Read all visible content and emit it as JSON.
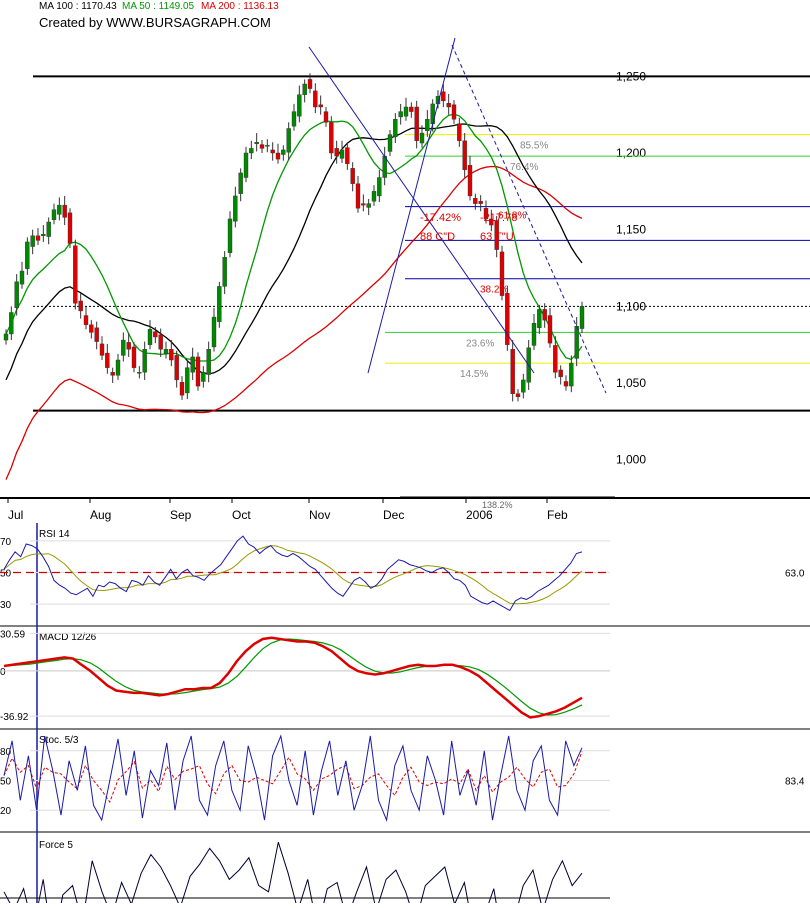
{
  "header": {
    "ma100": "MA 100 : 1170.43",
    "ma50": "MA 50 : 1149.05",
    "ma200": "MA 200 : 1136.13",
    "created_by": "Created by WWW.BURSAGRAPH.COM"
  },
  "colors": {
    "ma100": "#000000",
    "ma50": "#009900",
    "ma200": "#dd0000",
    "trend": "#1a1aaa",
    "fib_yellow": "#eeee00",
    "fib_green": "#33cc33",
    "fib_blue": "#0000aa",
    "candle_up": "#008800",
    "candle_down": "#dd0000",
    "rsi_line": "#1a1aaa",
    "rsi_signal": "#999900",
    "macd_main": "#dd0000",
    "macd_signal": "#009900",
    "stoch_k": "#1a1aaa",
    "stoch_d": "#dd0000",
    "force_line": "#000033"
  },
  "chart_data": [
    {
      "type": "candlestick",
      "name": "price",
      "x_labels": [
        "Jul",
        "Aug",
        "Sep",
        "Oct",
        "Nov",
        "Dec",
        "2006",
        "Feb"
      ],
      "y_ticks": [
        "1,250",
        "1,200",
        "1,150",
        "1,100",
        "1,050",
        "1,000"
      ],
      "ylim": [
        975,
        1275
      ],
      "horizontal_levels": [
        1250,
        1032
      ],
      "fib_levels": [
        {
          "label": "85.5%",
          "value": 1212
        },
        {
          "label": "76.4%",
          "value": 1198
        },
        {
          "label": "61.8%",
          "value": 1165
        },
        {
          "label": "",
          "value": 1143
        },
        {
          "label": "38.2%",
          "value": 1118
        },
        {
          "label": "23.6%",
          "value": 1083
        },
        {
          "label": "14.5%",
          "value": 1063
        },
        {
          "label": "138.2%",
          "value": 907
        }
      ],
      "annotations": [
        "-17.42%",
        "-217.78",
        "88 C\"D",
        "63 T\"U"
      ],
      "last_close": 1100,
      "closes": [
        1082,
        1096,
        1116,
        1123,
        1142,
        1146,
        1143,
        1147,
        1155,
        1163,
        1166,
        1158,
        1141,
        1102,
        1097,
        1088,
        1083,
        1077,
        1068,
        1060,
        1055,
        1065,
        1078,
        1072,
        1060,
        1057,
        1072,
        1085,
        1080,
        1072,
        1072,
        1065,
        1052,
        1042,
        1060,
        1067,
        1048,
        1057,
        1072,
        1093,
        1113,
        1132,
        1157,
        1172,
        1187,
        1200,
        1203,
        1207,
        1203,
        1205,
        1200,
        1196,
        1202,
        1216,
        1227,
        1238,
        1245,
        1242,
        1230,
        1230,
        1220,
        1200,
        1198,
        1202,
        1193,
        1180,
        1164,
        1166,
        1167,
        1175,
        1184,
        1198,
        1212,
        1222,
        1227,
        1230,
        1227,
        1208,
        1213,
        1222,
        1232,
        1237,
        1234,
        1230,
        1222,
        1208,
        1189,
        1172,
        1167,
        1167,
        1157,
        1153,
        1137,
        1107,
        1075,
        1043,
        1041,
        1052,
        1073,
        1089,
        1098,
        1091,
        1076,
        1057,
        1054,
        1048,
        1063,
        1087,
        1100
      ]
    },
    {
      "type": "line",
      "name": "RSI 14",
      "label": "RSI 14",
      "y_ticks": [
        "70",
        "50",
        "30"
      ],
      "ylim": [
        20,
        80
      ],
      "ref_level": 50,
      "last_value": "63.0",
      "values": [
        52,
        58,
        63,
        60,
        68,
        67,
        65,
        60,
        54,
        45,
        42,
        40,
        37,
        36,
        38,
        40,
        35,
        42,
        41,
        44,
        43,
        40,
        38,
        45,
        44,
        42,
        48,
        44,
        42,
        47,
        52,
        46,
        50,
        52,
        48,
        47,
        45,
        49,
        52,
        55,
        60,
        65,
        70,
        73,
        68,
        66,
        62,
        65,
        67,
        63,
        61,
        60,
        62,
        60,
        57,
        54,
        52,
        48,
        44,
        40,
        37,
        35,
        40,
        45,
        47,
        44,
        40,
        42,
        46,
        52,
        55,
        58,
        57,
        55,
        54,
        53,
        51,
        50,
        52,
        53,
        50,
        46,
        45,
        42,
        35,
        33,
        31,
        30,
        32,
        30,
        28,
        26,
        32,
        34,
        33,
        35,
        38,
        40,
        42,
        45,
        48,
        52,
        56,
        62,
        63
      ]
    },
    {
      "type": "line",
      "name": "MACD 12/26",
      "label": "MACD 12/26",
      "y_ticks": [
        "30.59",
        "0",
        "-36.92"
      ],
      "ylim": [
        -45,
        35
      ],
      "ref_level": 0,
      "values": [
        4,
        5,
        6,
        7,
        8,
        9,
        10,
        11,
        10,
        5,
        0,
        -6,
        -12,
        -16,
        -17,
        -18,
        -18,
        -19,
        -20,
        -19,
        -17,
        -15,
        -15,
        -14,
        -14,
        -10,
        -2,
        8,
        16,
        22,
        26,
        27,
        26,
        25,
        24,
        24,
        23,
        20,
        16,
        10,
        4,
        0,
        -2,
        -3,
        -2,
        0,
        2,
        4,
        5,
        4,
        4,
        5,
        5,
        3,
        0,
        -4,
        -10,
        -16,
        -22,
        -28,
        -34,
        -38,
        -37,
        -35,
        -33,
        -30,
        -26,
        -22
      ]
    },
    {
      "type": "line",
      "name": "Stoc. 5/3",
      "label": "Stoc. 5/3",
      "y_ticks": [
        "80",
        "50",
        "20"
      ],
      "ylim": [
        0,
        100
      ],
      "last_value": "83.4",
      "values": [
        55,
        90,
        30,
        75,
        20,
        95,
        60,
        15,
        70,
        40,
        85,
        25,
        10,
        50,
        92,
        35,
        80,
        12,
        60,
        45,
        88,
        20,
        70,
        95,
        30,
        15,
        65,
        90,
        40,
        20,
        85,
        55,
        10,
        75,
        95,
        50,
        25,
        80,
        15,
        60,
        90,
        35,
        70,
        20,
        45,
        95,
        30,
        10,
        65,
        85,
        40,
        20,
        75,
        50,
        15,
        90,
        35,
        60,
        25,
        80,
        10,
        55,
        95,
        40,
        20,
        70,
        85,
        30,
        15,
        90,
        65,
        83
      ]
    },
    {
      "type": "line",
      "name": "Force 5",
      "label": "Force 5",
      "ylim": [
        -100,
        100
      ],
      "ref_level": 0,
      "values": [
        10,
        -20,
        15,
        -50,
        30,
        -80,
        5,
        20,
        -40,
        60,
        10,
        -30,
        25,
        -10,
        40,
        70,
        50,
        20,
        -15,
        35,
        55,
        80,
        60,
        30,
        45,
        65,
        20,
        10,
        90,
        40,
        -20,
        30,
        -50,
        15,
        25,
        -35,
        10,
        50,
        -20,
        30,
        45,
        10,
        -40,
        20,
        35,
        50,
        -10,
        25,
        -60,
        -30,
        15,
        -80,
        -40,
        20,
        45,
        -20,
        30,
        60,
        20,
        40
      ]
    }
  ]
}
